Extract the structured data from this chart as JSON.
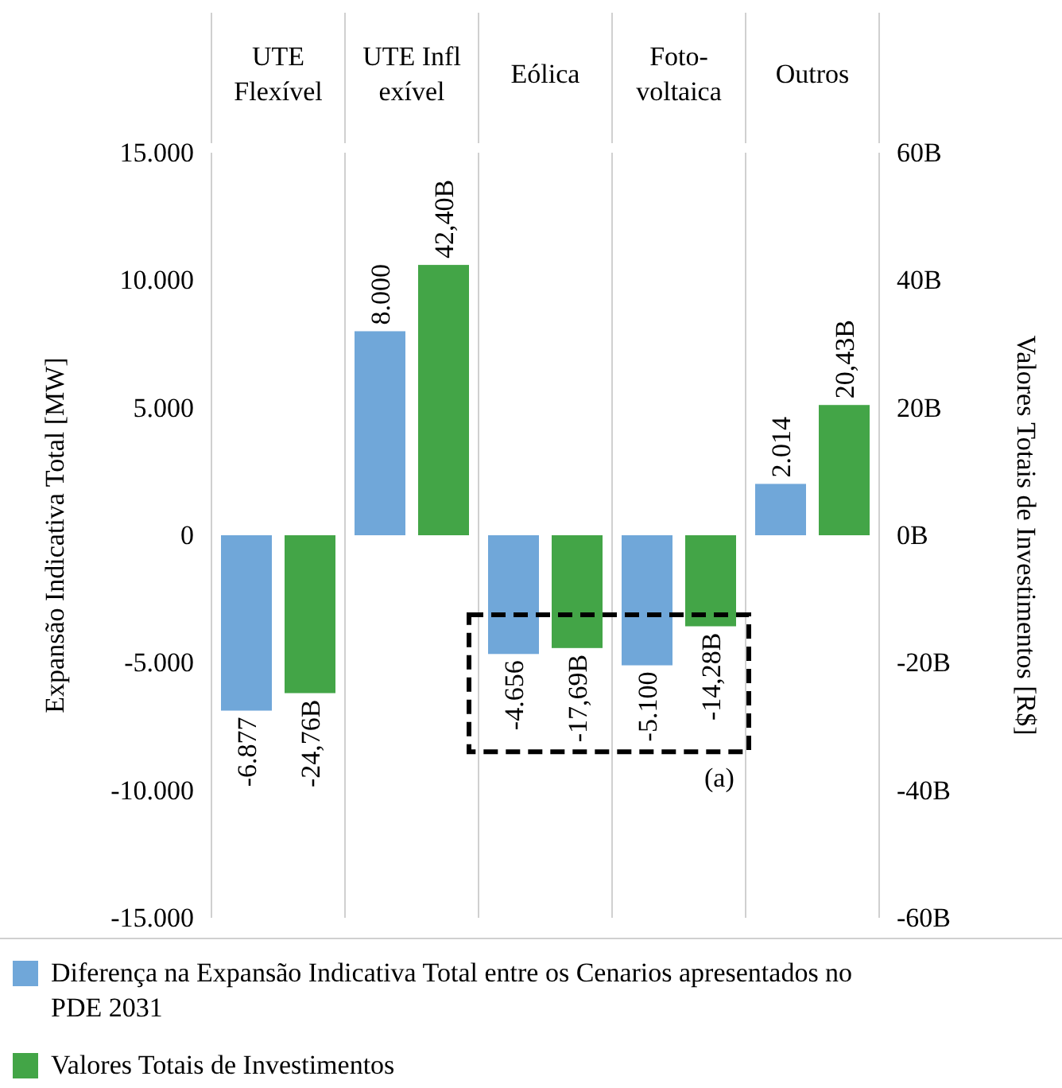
{
  "chart_data": {
    "type": "bar",
    "categories": [
      "UTE\nFlexível",
      "UTE Infl\nexível",
      "Eólica",
      "Foto-\nvoltaica",
      "Outros"
    ],
    "series": [
      {
        "name": "Diferença na Expansão Indicativa Total entre os Cenarios apresentados no PDE 2031",
        "color": "#70a7d9",
        "values": [
          -6877,
          8000,
          -4656,
          -5100,
          2014
        ],
        "value_labels": [
          "-6.877",
          "8.000",
          "-4.656",
          "-5.100",
          "2.014"
        ]
      },
      {
        "name": "Valores Totais de Investimentos",
        "color": "#43a547",
        "axis": "y2",
        "values": [
          -24.76,
          42.4,
          -17.69,
          -14.28,
          20.43
        ],
        "value_labels": [
          "-24,76B",
          "42,40B",
          "-17,69B",
          "-14,28B",
          "20,43B"
        ]
      }
    ],
    "ylabel": "Expansão Indicativa Total  [MW]",
    "y2label": "Valores Totais de Investimentos  [R$]",
    "ylim": [
      -15000,
      15000
    ],
    "yticks": [
      {
        "value": -15000,
        "label": "-15.000"
      },
      {
        "value": -10000,
        "label": "-10.000"
      },
      {
        "value": -5000,
        "label": "-5.000"
      },
      0,
      {
        "value": 5000,
        "label": "5.000"
      },
      {
        "value": 10000,
        "label": "10.000"
      },
      {
        "value": 15000,
        "label": "15.000"
      }
    ],
    "y2lim": [
      -60,
      60
    ],
    "y2ticks": [
      {
        "value": -60,
        "label": "-60B"
      },
      {
        "value": -40,
        "label": "-40B"
      },
      {
        "value": -20,
        "label": "-20B"
      },
      {
        "value": 0,
        "label": "0B"
      },
      {
        "value": 20,
        "label": "20B"
      },
      {
        "value": 40,
        "label": "40B"
      },
      {
        "value": 60,
        "label": "60B"
      }
    ],
    "annotations": [
      "(a)"
    ],
    "legend": "bottom",
    "grid": false
  }
}
